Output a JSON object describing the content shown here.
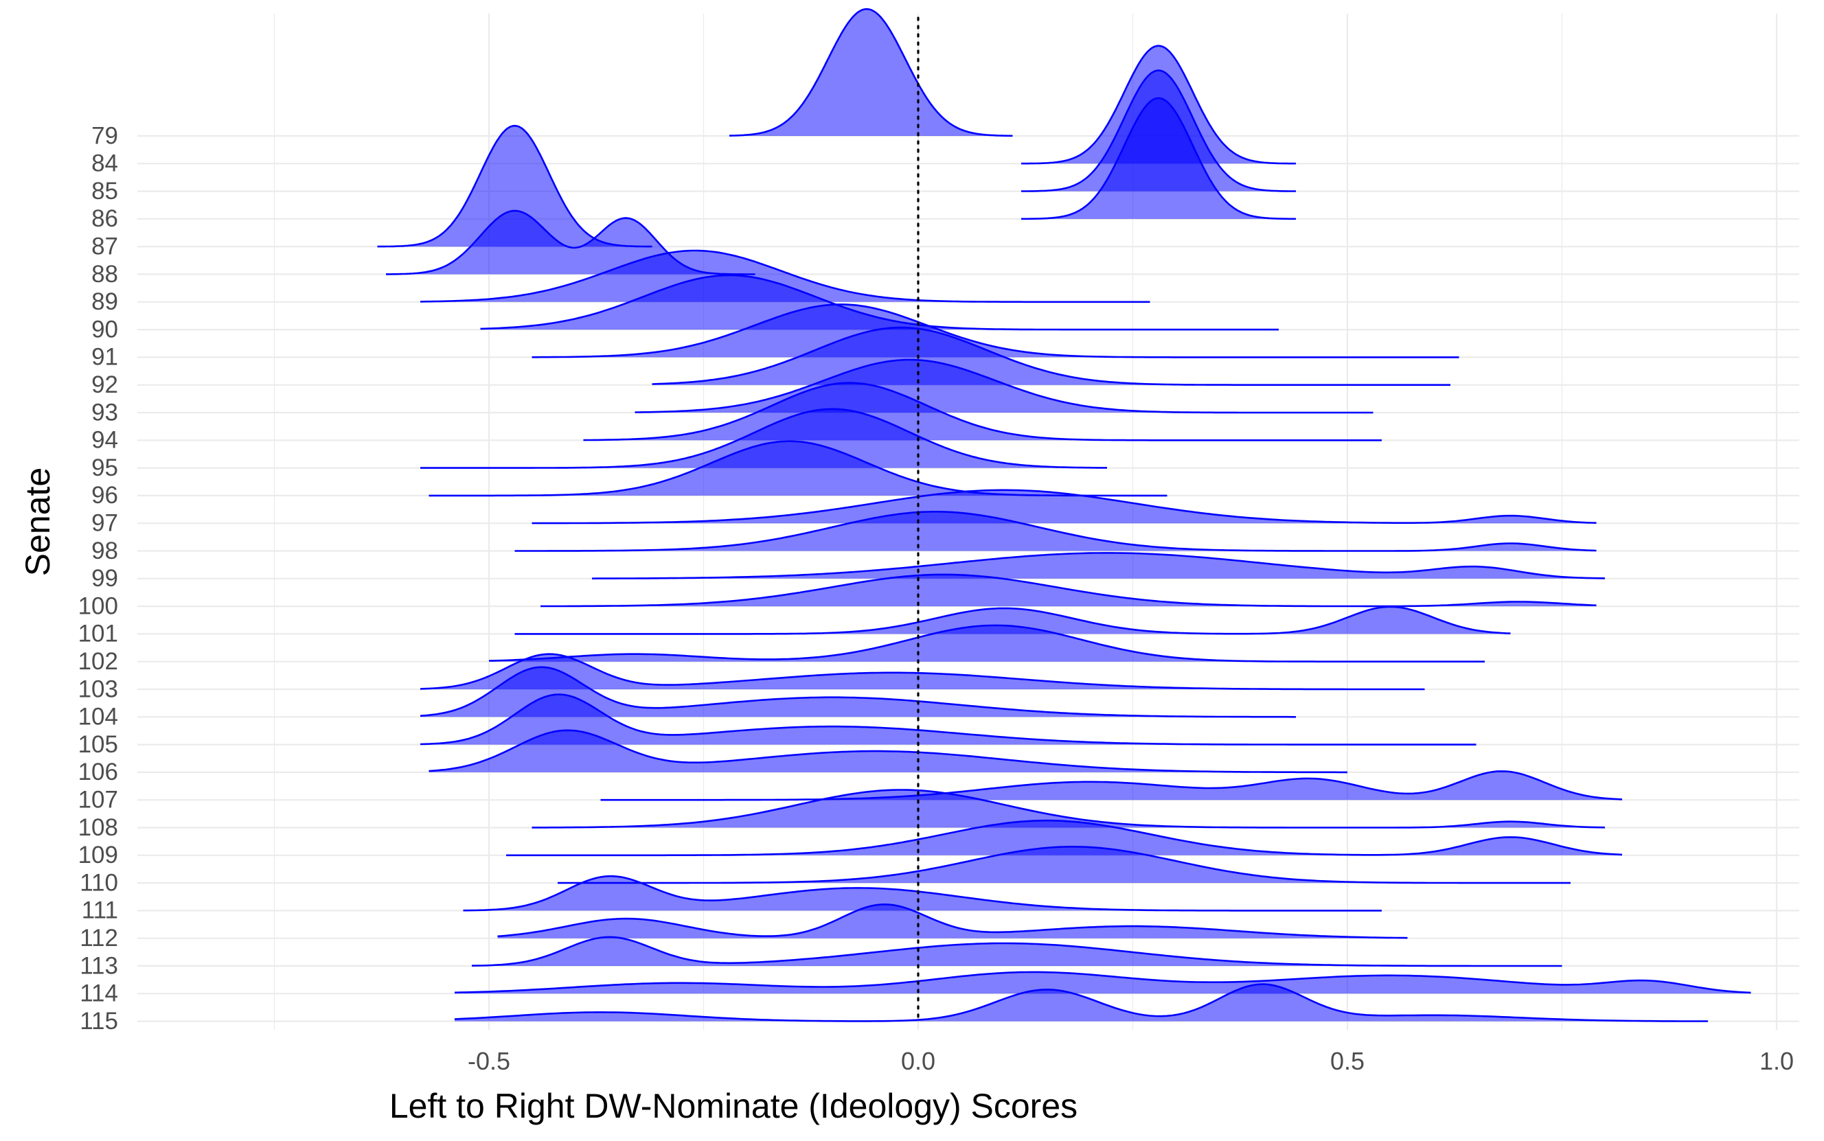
{
  "chart_data": {
    "type": "ridgeline",
    "title": "",
    "xlabel": "Left to Right DW-Nominate (Ideology) Scores",
    "ylabel": "Senate",
    "xlim": [
      -0.9,
      1.03
    ],
    "x_ticks": [
      -0.5,
      0.0,
      0.5,
      1.0
    ],
    "x_tick_labels": [
      "-0.5",
      "0.0",
      "0.5",
      "1.0"
    ],
    "grid": true,
    "reference_line": {
      "x": 0.0,
      "style": "dotted"
    },
    "fill_color": "#0000ff",
    "fill_opacity": 0.5,
    "line_color": "#0000ff",
    "categories": [
      "79",
      "84",
      "85",
      "86",
      "87",
      "88",
      "89",
      "90",
      "91",
      "92",
      "93",
      "94",
      "95",
      "96",
      "97",
      "98",
      "99",
      "100",
      "101",
      "102",
      "103",
      "104",
      "105",
      "106",
      "107",
      "108",
      "109",
      "110",
      "111",
      "112",
      "113",
      "114",
      "115"
    ],
    "series": [
      {
        "senate": "79",
        "range": [
          -0.22,
          0.11
        ],
        "peaks": [
          {
            "mu": -0.06,
            "sd": 0.045,
            "h": 4.2
          }
        ]
      },
      {
        "senate": "84",
        "range": [
          0.12,
          0.44
        ],
        "peaks": [
          {
            "mu": 0.28,
            "sd": 0.04,
            "h": 3.9
          }
        ]
      },
      {
        "senate": "85",
        "range": [
          0.12,
          0.44
        ],
        "peaks": [
          {
            "mu": 0.28,
            "sd": 0.04,
            "h": 4.0
          }
        ]
      },
      {
        "senate": "86",
        "range": [
          0.12,
          0.44
        ],
        "peaks": [
          {
            "mu": 0.28,
            "sd": 0.04,
            "h": 4.0
          }
        ]
      },
      {
        "senate": "87",
        "range": [
          -0.63,
          -0.31
        ],
        "peaks": [
          {
            "mu": -0.47,
            "sd": 0.04,
            "h": 4.0
          }
        ]
      },
      {
        "senate": "88",
        "range": [
          -0.62,
          -0.19
        ],
        "peaks": [
          {
            "mu": -0.47,
            "sd": 0.04,
            "h": 2.1
          },
          {
            "mu": -0.34,
            "sd": 0.035,
            "h": 1.85
          }
        ]
      },
      {
        "senate": "89",
        "range": [
          -0.58,
          0.27
        ],
        "peaks": [
          {
            "mu": -0.26,
            "sd": 0.1,
            "h": 1.7
          }
        ]
      },
      {
        "senate": "90",
        "range": [
          -0.51,
          0.42
        ],
        "peaks": [
          {
            "mu": -0.22,
            "sd": 0.1,
            "h": 1.8
          }
        ]
      },
      {
        "senate": "91",
        "range": [
          -0.45,
          0.63
        ],
        "peaks": [
          {
            "mu": -0.09,
            "sd": 0.1,
            "h": 1.75
          }
        ]
      },
      {
        "senate": "92",
        "range": [
          -0.31,
          0.62
        ],
        "peaks": [
          {
            "mu": -0.02,
            "sd": 0.1,
            "h": 1.9
          }
        ]
      },
      {
        "senate": "93",
        "range": [
          -0.33,
          0.53
        ],
        "peaks": [
          {
            "mu": -0.01,
            "sd": 0.1,
            "h": 1.75
          }
        ]
      },
      {
        "senate": "94",
        "range": [
          -0.39,
          0.54
        ],
        "peaks": [
          {
            "mu": -0.08,
            "sd": 0.09,
            "h": 1.9
          }
        ]
      },
      {
        "senate": "95",
        "range": [
          -0.58,
          0.22
        ],
        "peaks": [
          {
            "mu": -0.1,
            "sd": 0.09,
            "h": 1.95
          }
        ]
      },
      {
        "senate": "96",
        "range": [
          -0.57,
          0.29
        ],
        "peaks": [
          {
            "mu": -0.15,
            "sd": 0.09,
            "h": 1.8
          }
        ]
      },
      {
        "senate": "97",
        "range": [
          -0.45,
          0.79
        ],
        "peaks": [
          {
            "mu": 0.1,
            "sd": 0.15,
            "h": 1.1
          },
          {
            "mu": 0.69,
            "sd": 0.04,
            "h": 0.25
          }
        ]
      },
      {
        "senate": "98",
        "range": [
          -0.47,
          0.79
        ],
        "peaks": [
          {
            "mu": 0.02,
            "sd": 0.12,
            "h": 1.3
          },
          {
            "mu": 0.69,
            "sd": 0.04,
            "h": 0.25
          }
        ]
      },
      {
        "senate": "99",
        "range": [
          -0.38,
          0.8
        ],
        "peaks": [
          {
            "mu": 0.22,
            "sd": 0.18,
            "h": 0.85
          },
          {
            "mu": 0.65,
            "sd": 0.05,
            "h": 0.35
          }
        ]
      },
      {
        "senate": "100",
        "range": [
          -0.44,
          0.79
        ],
        "peaks": [
          {
            "mu": 0.03,
            "sd": 0.13,
            "h": 1.05
          },
          {
            "mu": 0.7,
            "sd": 0.05,
            "h": 0.15
          }
        ]
      },
      {
        "senate": "101",
        "range": [
          -0.47,
          0.69
        ],
        "peaks": [
          {
            "mu": 0.1,
            "sd": 0.08,
            "h": 0.85
          },
          {
            "mu": 0.55,
            "sd": 0.05,
            "h": 0.9
          }
        ]
      },
      {
        "senate": "102",
        "range": [
          -0.5,
          0.66
        ],
        "peaks": [
          {
            "mu": 0.09,
            "sd": 0.1,
            "h": 1.2
          },
          {
            "mu": -0.33,
            "sd": 0.08,
            "h": 0.25
          }
        ]
      },
      {
        "senate": "103",
        "range": [
          -0.58,
          0.59
        ],
        "peaks": [
          {
            "mu": -0.43,
            "sd": 0.05,
            "h": 1.15
          },
          {
            "mu": -0.03,
            "sd": 0.15,
            "h": 0.55
          }
        ]
      },
      {
        "senate": "104",
        "range": [
          -0.58,
          0.44
        ],
        "peaks": [
          {
            "mu": -0.44,
            "sd": 0.05,
            "h": 1.6
          },
          {
            "mu": -0.1,
            "sd": 0.15,
            "h": 0.65
          }
        ]
      },
      {
        "senate": "105",
        "range": [
          -0.58,
          0.65
        ],
        "peaks": [
          {
            "mu": -0.42,
            "sd": 0.05,
            "h": 1.6
          },
          {
            "mu": -0.1,
            "sd": 0.15,
            "h": 0.6
          }
        ]
      },
      {
        "senate": "106",
        "range": [
          -0.57,
          0.5
        ],
        "peaks": [
          {
            "mu": -0.41,
            "sd": 0.06,
            "h": 1.35
          },
          {
            "mu": -0.05,
            "sd": 0.15,
            "h": 0.7
          }
        ]
      },
      {
        "senate": "107",
        "range": [
          -0.37,
          0.82
        ],
        "peaks": [
          {
            "mu": 0.2,
            "sd": 0.12,
            "h": 0.6
          },
          {
            "mu": 0.46,
            "sd": 0.06,
            "h": 0.65
          },
          {
            "mu": 0.68,
            "sd": 0.05,
            "h": 0.95
          }
        ]
      },
      {
        "senate": "108",
        "range": [
          -0.45,
          0.8
        ],
        "peaks": [
          {
            "mu": -0.02,
            "sd": 0.12,
            "h": 1.25
          },
          {
            "mu": 0.69,
            "sd": 0.04,
            "h": 0.2
          }
        ]
      },
      {
        "senate": "109",
        "range": [
          -0.48,
          0.82
        ],
        "peaks": [
          {
            "mu": 0.15,
            "sd": 0.12,
            "h": 1.15
          },
          {
            "mu": 0.69,
            "sd": 0.05,
            "h": 0.6
          }
        ]
      },
      {
        "senate": "110",
        "range": [
          -0.42,
          0.76
        ],
        "peaks": [
          {
            "mu": 0.18,
            "sd": 0.12,
            "h": 1.2
          }
        ]
      },
      {
        "senate": "111",
        "range": [
          -0.53,
          0.54
        ],
        "peaks": [
          {
            "mu": -0.36,
            "sd": 0.05,
            "h": 1.1
          },
          {
            "mu": -0.07,
            "sd": 0.12,
            "h": 0.75
          }
        ]
      },
      {
        "senate": "112",
        "range": [
          -0.49,
          0.57
        ],
        "peaks": [
          {
            "mu": -0.34,
            "sd": 0.07,
            "h": 0.65
          },
          {
            "mu": -0.04,
            "sd": 0.05,
            "h": 1.1
          },
          {
            "mu": 0.25,
            "sd": 0.12,
            "h": 0.4
          }
        ]
      },
      {
        "senate": "113",
        "range": [
          -0.52,
          0.75
        ],
        "peaks": [
          {
            "mu": -0.36,
            "sd": 0.05,
            "h": 0.95
          },
          {
            "mu": 0.1,
            "sd": 0.15,
            "h": 0.75
          }
        ]
      },
      {
        "senate": "114",
        "range": [
          -0.54,
          0.97
        ],
        "peaks": [
          {
            "mu": -0.28,
            "sd": 0.12,
            "h": 0.35
          },
          {
            "mu": 0.13,
            "sd": 0.12,
            "h": 0.7
          },
          {
            "mu": 0.55,
            "sd": 0.15,
            "h": 0.6
          },
          {
            "mu": 0.85,
            "sd": 0.05,
            "h": 0.35
          }
        ]
      },
      {
        "senate": "115",
        "range": [
          -0.54,
          0.92
        ],
        "peaks": [
          {
            "mu": -0.37,
            "sd": 0.1,
            "h": 0.3
          },
          {
            "mu": 0.15,
            "sd": 0.06,
            "h": 1.05
          },
          {
            "mu": 0.4,
            "sd": 0.05,
            "h": 1.2
          },
          {
            "mu": 0.6,
            "sd": 0.1,
            "h": 0.2
          }
        ]
      }
    ]
  }
}
